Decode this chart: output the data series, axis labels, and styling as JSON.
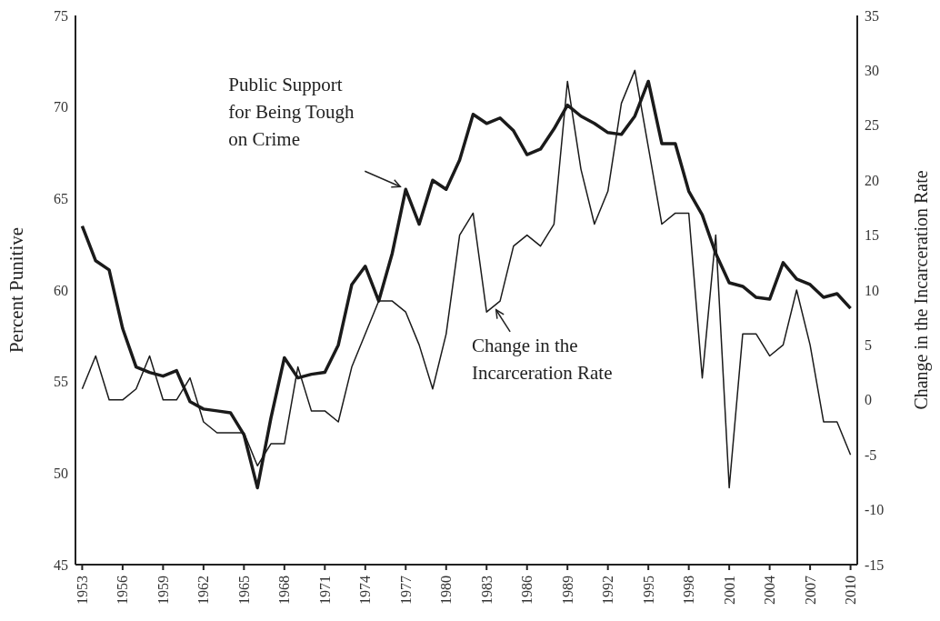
{
  "chart_data": {
    "type": "line",
    "xlabel": null,
    "ylabel": "Percent Punitive",
    "y2label": "Change in the Incarceration Rate",
    "x": [
      1953,
      1954,
      1955,
      1956,
      1957,
      1958,
      1959,
      1960,
      1961,
      1962,
      1963,
      1964,
      1965,
      1966,
      1967,
      1968,
      1969,
      1970,
      1971,
      1972,
      1973,
      1974,
      1975,
      1976,
      1977,
      1978,
      1979,
      1980,
      1981,
      1982,
      1983,
      1984,
      1985,
      1986,
      1987,
      1988,
      1989,
      1990,
      1991,
      1992,
      1993,
      1994,
      1995,
      1996,
      1997,
      1998,
      1999,
      2000,
      2001,
      2002,
      2003,
      2004,
      2005,
      2006,
      2007,
      2008,
      2009,
      2010
    ],
    "series": [
      {
        "color": "#1a1a1a",
        "values": [
          63.5,
          61.6,
          61.1,
          57.9,
          55.8,
          55.5,
          55.3,
          55.6,
          53.9,
          53.5,
          53.4,
          53.3,
          52.1,
          49.2,
          53.0,
          56.3,
          55.2,
          55.4,
          55.5,
          57.0,
          60.3,
          61.3,
          59.4,
          62.0,
          65.5,
          63.6,
          66.0,
          65.5,
          67.1,
          69.6,
          69.1,
          69.4,
          68.7,
          67.4,
          67.7,
          68.8,
          70.1,
          69.5,
          69.1,
          68.6,
          68.5,
          69.5,
          71.4,
          68.0,
          68.0,
          65.4,
          64.1,
          62.0,
          60.4,
          60.2,
          59.6,
          59.5,
          61.5,
          60.6,
          60.3,
          59.6,
          59.8,
          59.0
        ]
      },
      {
        "color": "#1a1a1a",
        "axis": "y2",
        "values": [
          1,
          4,
          0,
          0,
          1,
          4,
          0,
          0,
          2,
          -2,
          -3,
          -3,
          -3,
          -6,
          -4,
          -4,
          3,
          -1,
          -1,
          -2,
          3,
          6,
          9,
          9,
          8,
          5,
          1,
          6,
          15,
          17,
          8,
          9,
          14,
          15,
          14,
          16,
          29,
          21,
          16,
          19,
          27,
          30,
          23,
          16,
          17,
          17,
          2,
          15,
          -8,
          6,
          6,
          4,
          5,
          10,
          5,
          -2,
          -2,
          -5
        ]
      }
    ],
    "xlim": [
      1952.5,
      2010.5
    ],
    "xticks": [
      1953,
      1956,
      1959,
      1962,
      1965,
      1968,
      1971,
      1974,
      1977,
      1980,
      1983,
      1986,
      1989,
      1992,
      1995,
      1998,
      2001,
      2004,
      2007,
      2010
    ],
    "ylim": [
      45,
      75
    ],
    "yticks": [
      45,
      50,
      55,
      60,
      65,
      70,
      75
    ],
    "y2lim": [
      -15,
      35
    ],
    "y2ticks": [
      -15,
      -10,
      -5,
      0,
      5,
      10,
      15,
      20,
      25,
      30,
      35
    ],
    "annotations": [
      {
        "text": "Public Support\nfor Being Tough\non Crime",
        "x": 1977,
        "y": 65.5
      },
      "Change in the\nIncarceration Rate"
    ],
    "grid": false,
    "legend": false,
    "marker": "none",
    "line_style": "solid"
  }
}
